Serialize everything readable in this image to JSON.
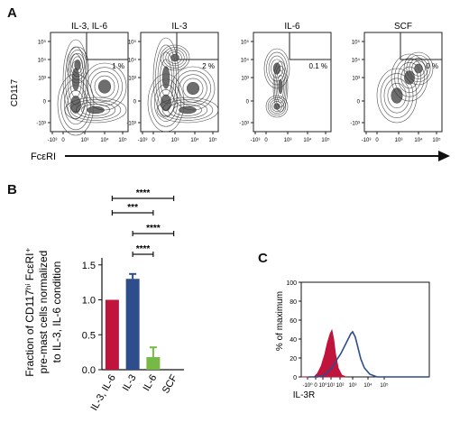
{
  "panels": {
    "a": "A",
    "b": "B",
    "c": "C"
  },
  "chart_data": [
    {
      "type": "scatter",
      "subtype": "flow cytometry contour plots",
      "ylabel": "CD117",
      "xlabel": "FcεRI",
      "x_ticks": [
        "-10³",
        "0",
        "10³",
        "10⁴",
        "10⁵"
      ],
      "y_ticks": [
        "10⁵",
        "10⁴",
        "10³",
        "0",
        "-10³"
      ],
      "gate": "upper-right",
      "plots": [
        {
          "title": "IL-3, IL-6",
          "gate_percent": 1,
          "gate_label": "1 %"
        },
        {
          "title": "IL-3",
          "gate_percent": 2,
          "gate_label": "2 %"
        },
        {
          "title": "IL-6",
          "gate_percent": 0.1,
          "gate_label": "0.1 %"
        },
        {
          "title": "SCF",
          "gate_percent": 0,
          "gate_label": "0 %"
        }
      ]
    },
    {
      "type": "bar",
      "categories": [
        "IL-3, IL-6",
        "IL-3",
        "IL-6",
        "SCF"
      ],
      "values": [
        1.0,
        1.3,
        0.18,
        0.0
      ],
      "errors": [
        0,
        0.07,
        0.14,
        0
      ],
      "colors": [
        "#c0143c",
        "#2e4d8c",
        "#77b947",
        "#cccccc"
      ],
      "ylabel": [
        "Fraction of CD117ʰⁱ FcεRI⁺",
        "pre-mast cells normalized",
        "to IL-3, IL-6 condition"
      ],
      "ylim": [
        0,
        1.6
      ],
      "yticks": [
        0.0,
        0.5,
        1.0,
        1.5
      ],
      "ytick_labels": [
        "0.0",
        "0.5",
        "1.0",
        "1.5"
      ],
      "significance": [
        {
          "from": 0,
          "to": 3,
          "label": "****"
        },
        {
          "from": 0,
          "to": 2,
          "label": "***"
        },
        {
          "from": 1,
          "to": 3,
          "label": "****"
        },
        {
          "from": 1,
          "to": 2,
          "label": "****"
        }
      ]
    },
    {
      "type": "area",
      "subtype": "histogram overlay",
      "xlabel": "IL-3R",
      "ylabel": "% of maximum",
      "ylim": [
        0,
        100
      ],
      "yticks": [
        0,
        20,
        40,
        60,
        80,
        100
      ],
      "x_ticks": [
        "-10⁰",
        "0",
        "10⁰",
        "10¹",
        "10²",
        "10³",
        "10⁴",
        "10⁵"
      ],
      "series": [
        {
          "style": "filled",
          "color": "#c0143c"
        },
        {
          "style": "outline",
          "color": "#2e4d8c"
        }
      ]
    }
  ]
}
